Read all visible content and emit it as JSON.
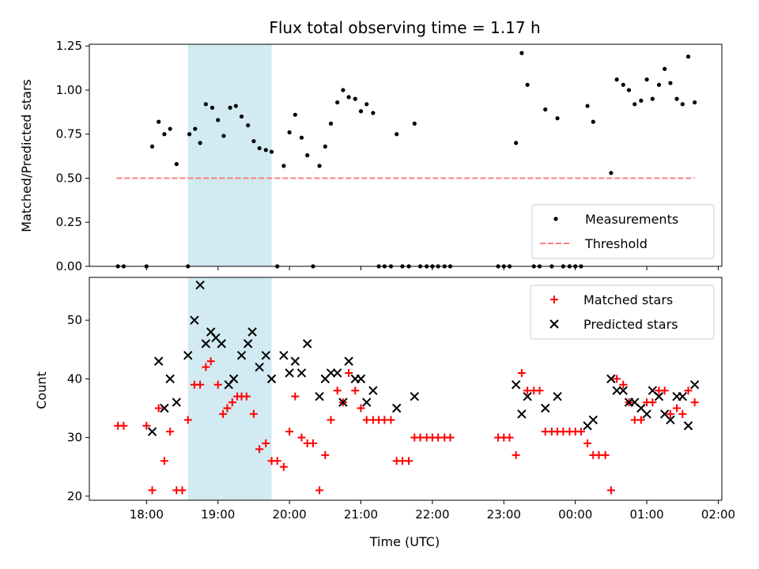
{
  "figure": {
    "title": "Flux total observing time = 1.17 h",
    "xlabel": "Time (UTC)"
  },
  "colors": {
    "shade": "#add8e6",
    "measurements": "#000000",
    "threshold": "#ff7f7f",
    "matched": "#ff0000",
    "predicted": "#000000"
  },
  "chart_data": [
    {
      "type": "scatter",
      "panel": "top",
      "ylabel": "Matched/Predicted stars",
      "xlim": [
        17.2,
        26.05
      ],
      "ylim": [
        0,
        1.26
      ],
      "x_tick_values": [
        18,
        19,
        20,
        21,
        22,
        23,
        24,
        25,
        26
      ],
      "x_tick_labels": [],
      "y_ticks": [
        0.0,
        0.25,
        0.5,
        0.75,
        1.0,
        1.25
      ],
      "y_tick_labels": [
        "0.00",
        "0.25",
        "0.50",
        "0.75",
        "1.00",
        "1.25"
      ],
      "shaded_span": [
        18.58,
        19.75
      ],
      "legend": {
        "position": "lower right",
        "entries": [
          "Measurements",
          "Threshold"
        ]
      },
      "threshold": {
        "name": "Threshold",
        "y": 0.5,
        "x": [
          17.58,
          25.67
        ],
        "style": "dashed"
      },
      "series": [
        {
          "name": "Measurements",
          "marker": "dot",
          "points": [
            [
              17.6,
              0
            ],
            [
              17.68,
              0
            ],
            [
              18.0,
              0
            ],
            [
              18.08,
              0.68
            ],
            [
              18.17,
              0.82
            ],
            [
              18.25,
              0.75
            ],
            [
              18.33,
              0.78
            ],
            [
              18.42,
              0.58
            ],
            [
              18.58,
              0
            ],
            [
              18.6,
              0.75
            ],
            [
              18.68,
              0.78
            ],
            [
              18.75,
              0.7
            ],
            [
              18.83,
              0.92
            ],
            [
              18.92,
              0.9
            ],
            [
              19.0,
              0.83
            ],
            [
              19.08,
              0.74
            ],
            [
              19.17,
              0.9
            ],
            [
              19.25,
              0.91
            ],
            [
              19.33,
              0.85
            ],
            [
              19.42,
              0.8
            ],
            [
              19.5,
              0.71
            ],
            [
              19.58,
              0.67
            ],
            [
              19.67,
              0.66
            ],
            [
              19.75,
              0.65
            ],
            [
              19.83,
              0
            ],
            [
              19.92,
              0.57
            ],
            [
              20.0,
              0.76
            ],
            [
              20.08,
              0.86
            ],
            [
              20.17,
              0.73
            ],
            [
              20.25,
              0.63
            ],
            [
              20.33,
              0
            ],
            [
              20.42,
              0.57
            ],
            [
              20.5,
              0.68
            ],
            [
              20.58,
              0.81
            ],
            [
              20.67,
              0.93
            ],
            [
              20.75,
              1.0
            ],
            [
              20.83,
              0.96
            ],
            [
              20.92,
              0.95
            ],
            [
              21.0,
              0.88
            ],
            [
              21.08,
              0.92
            ],
            [
              21.17,
              0.87
            ],
            [
              21.25,
              0
            ],
            [
              21.33,
              0
            ],
            [
              21.42,
              0
            ],
            [
              21.5,
              0.75
            ],
            [
              21.58,
              0
            ],
            [
              21.67,
              0
            ],
            [
              21.75,
              0.81
            ],
            [
              21.83,
              0
            ],
            [
              21.92,
              0
            ],
            [
              22.0,
              0
            ],
            [
              22.08,
              0
            ],
            [
              22.17,
              0
            ],
            [
              22.25,
              0
            ],
            [
              22.92,
              0
            ],
            [
              23.0,
              0
            ],
            [
              23.08,
              0
            ],
            [
              23.17,
              0.7
            ],
            [
              23.25,
              1.21
            ],
            [
              23.33,
              1.03
            ],
            [
              23.42,
              0
            ],
            [
              23.5,
              0
            ],
            [
              23.58,
              0.89
            ],
            [
              23.67,
              0
            ],
            [
              23.75,
              0.84
            ],
            [
              23.83,
              0
            ],
            [
              23.92,
              0
            ],
            [
              24.0,
              0
            ],
            [
              24.08,
              0
            ],
            [
              24.17,
              0.91
            ],
            [
              24.25,
              0.82
            ],
            [
              24.5,
              0.53
            ],
            [
              24.58,
              1.06
            ],
            [
              24.67,
              1.03
            ],
            [
              24.75,
              1.0
            ],
            [
              24.83,
              0.92
            ],
            [
              24.92,
              0.94
            ],
            [
              25.0,
              1.06
            ],
            [
              25.08,
              0.95
            ],
            [
              25.17,
              1.03
            ],
            [
              25.25,
              1.12
            ],
            [
              25.33,
              1.04
            ],
            [
              25.42,
              0.95
            ],
            [
              25.5,
              0.92
            ],
            [
              25.58,
              1.19
            ],
            [
              25.67,
              0.93
            ]
          ]
        }
      ]
    },
    {
      "type": "scatter",
      "panel": "bottom",
      "ylabel": "Count",
      "xlim": [
        17.2,
        26.05
      ],
      "ylim": [
        19.3,
        57.3
      ],
      "x_tick_values": [
        18,
        19,
        20,
        21,
        22,
        23,
        24,
        25,
        26
      ],
      "x_tick_labels": [
        "18:00",
        "19:00",
        "20:00",
        "21:00",
        "22:00",
        "23:00",
        "00:00",
        "01:00",
        "02:00"
      ],
      "y_ticks": [
        20,
        30,
        40,
        50
      ],
      "y_tick_labels": [
        "20",
        "30",
        "40",
        "50"
      ],
      "shaded_span": [
        18.58,
        19.75
      ],
      "legend": {
        "position": "upper right",
        "entries": [
          "Matched stars",
          "Predicted stars"
        ]
      },
      "series": [
        {
          "name": "Matched stars",
          "marker": "plus",
          "points": [
            [
              17.6,
              32
            ],
            [
              17.68,
              32
            ],
            [
              18.0,
              32
            ],
            [
              18.08,
              21
            ],
            [
              18.17,
              35
            ],
            [
              18.25,
              26
            ],
            [
              18.33,
              31
            ],
            [
              18.42,
              21
            ],
            [
              18.5,
              21
            ],
            [
              18.58,
              33
            ],
            [
              18.67,
              39
            ],
            [
              18.75,
              39
            ],
            [
              18.83,
              42
            ],
            [
              18.9,
              43
            ],
            [
              19.0,
              39
            ],
            [
              19.07,
              34
            ],
            [
              19.13,
              35
            ],
            [
              19.2,
              36
            ],
            [
              19.27,
              37
            ],
            [
              19.33,
              37
            ],
            [
              19.4,
              37
            ],
            [
              19.5,
              34
            ],
            [
              19.58,
              28
            ],
            [
              19.67,
              29
            ],
            [
              19.75,
              26
            ],
            [
              19.83,
              26
            ],
            [
              19.92,
              25
            ],
            [
              20.0,
              31
            ],
            [
              20.08,
              37
            ],
            [
              20.17,
              30
            ],
            [
              20.25,
              29
            ],
            [
              20.33,
              29
            ],
            [
              20.42,
              21
            ],
            [
              20.5,
              27
            ],
            [
              20.58,
              33
            ],
            [
              20.67,
              38
            ],
            [
              20.75,
              36
            ],
            [
              20.83,
              41
            ],
            [
              20.92,
              38
            ],
            [
              21.0,
              35
            ],
            [
              21.08,
              33
            ],
            [
              21.17,
              33
            ],
            [
              21.25,
              33
            ],
            [
              21.33,
              33
            ],
            [
              21.42,
              33
            ],
            [
              21.5,
              26
            ],
            [
              21.58,
              26
            ],
            [
              21.67,
              26
            ],
            [
              21.75,
              30
            ],
            [
              21.83,
              30
            ],
            [
              21.92,
              30
            ],
            [
              22.0,
              30
            ],
            [
              22.08,
              30
            ],
            [
              22.17,
              30
            ],
            [
              22.25,
              30
            ],
            [
              22.92,
              30
            ],
            [
              23.0,
              30
            ],
            [
              23.08,
              30
            ],
            [
              23.17,
              27
            ],
            [
              23.25,
              41
            ],
            [
              23.33,
              38
            ],
            [
              23.42,
              38
            ],
            [
              23.5,
              38
            ],
            [
              23.58,
              31
            ],
            [
              23.67,
              31
            ],
            [
              23.75,
              31
            ],
            [
              23.83,
              31
            ],
            [
              23.92,
              31
            ],
            [
              24.0,
              31
            ],
            [
              24.08,
              31
            ],
            [
              24.17,
              29
            ],
            [
              24.25,
              27
            ],
            [
              24.33,
              27
            ],
            [
              24.42,
              27
            ],
            [
              24.5,
              21
            ],
            [
              24.58,
              40
            ],
            [
              24.67,
              39
            ],
            [
              24.75,
              36
            ],
            [
              24.83,
              33
            ],
            [
              24.92,
              33
            ],
            [
              25.0,
              36
            ],
            [
              25.08,
              36
            ],
            [
              25.17,
              38
            ],
            [
              25.25,
              38
            ],
            [
              25.33,
              34
            ],
            [
              25.42,
              35
            ],
            [
              25.5,
              34
            ],
            [
              25.58,
              38
            ],
            [
              25.67,
              36
            ]
          ]
        },
        {
          "name": "Predicted stars",
          "marker": "x",
          "points": [
            [
              18.08,
              31
            ],
            [
              18.17,
              43
            ],
            [
              18.25,
              35
            ],
            [
              18.33,
              40
            ],
            [
              18.42,
              36
            ],
            [
              18.58,
              44
            ],
            [
              18.67,
              50
            ],
            [
              18.75,
              56
            ],
            [
              18.83,
              46
            ],
            [
              18.9,
              48
            ],
            [
              18.97,
              47
            ],
            [
              19.05,
              46
            ],
            [
              19.15,
              39
            ],
            [
              19.22,
              40
            ],
            [
              19.33,
              44
            ],
            [
              19.42,
              46
            ],
            [
              19.48,
              48
            ],
            [
              19.58,
              42
            ],
            [
              19.67,
              44
            ],
            [
              19.75,
              40
            ],
            [
              19.92,
              44
            ],
            [
              20.0,
              41
            ],
            [
              20.08,
              43
            ],
            [
              20.17,
              41
            ],
            [
              20.25,
              46
            ],
            [
              20.42,
              37
            ],
            [
              20.5,
              40
            ],
            [
              20.58,
              41
            ],
            [
              20.67,
              41
            ],
            [
              20.75,
              36
            ],
            [
              20.83,
              43
            ],
            [
              20.92,
              40
            ],
            [
              21.0,
              40
            ],
            [
              21.08,
              36
            ],
            [
              21.17,
              38
            ],
            [
              21.5,
              35
            ],
            [
              21.75,
              37
            ],
            [
              23.17,
              39
            ],
            [
              23.25,
              34
            ],
            [
              23.33,
              37
            ],
            [
              23.58,
              35
            ],
            [
              23.75,
              37
            ],
            [
              24.17,
              32
            ],
            [
              24.25,
              33
            ],
            [
              24.5,
              40
            ],
            [
              24.58,
              38
            ],
            [
              24.67,
              38
            ],
            [
              24.75,
              36
            ],
            [
              24.83,
              36
            ],
            [
              24.92,
              35
            ],
            [
              25.0,
              34
            ],
            [
              25.08,
              38
            ],
            [
              25.17,
              37
            ],
            [
              25.25,
              34
            ],
            [
              25.33,
              33
            ],
            [
              25.42,
              37
            ],
            [
              25.5,
              37
            ],
            [
              25.58,
              32
            ],
            [
              25.67,
              39
            ]
          ]
        }
      ]
    }
  ]
}
